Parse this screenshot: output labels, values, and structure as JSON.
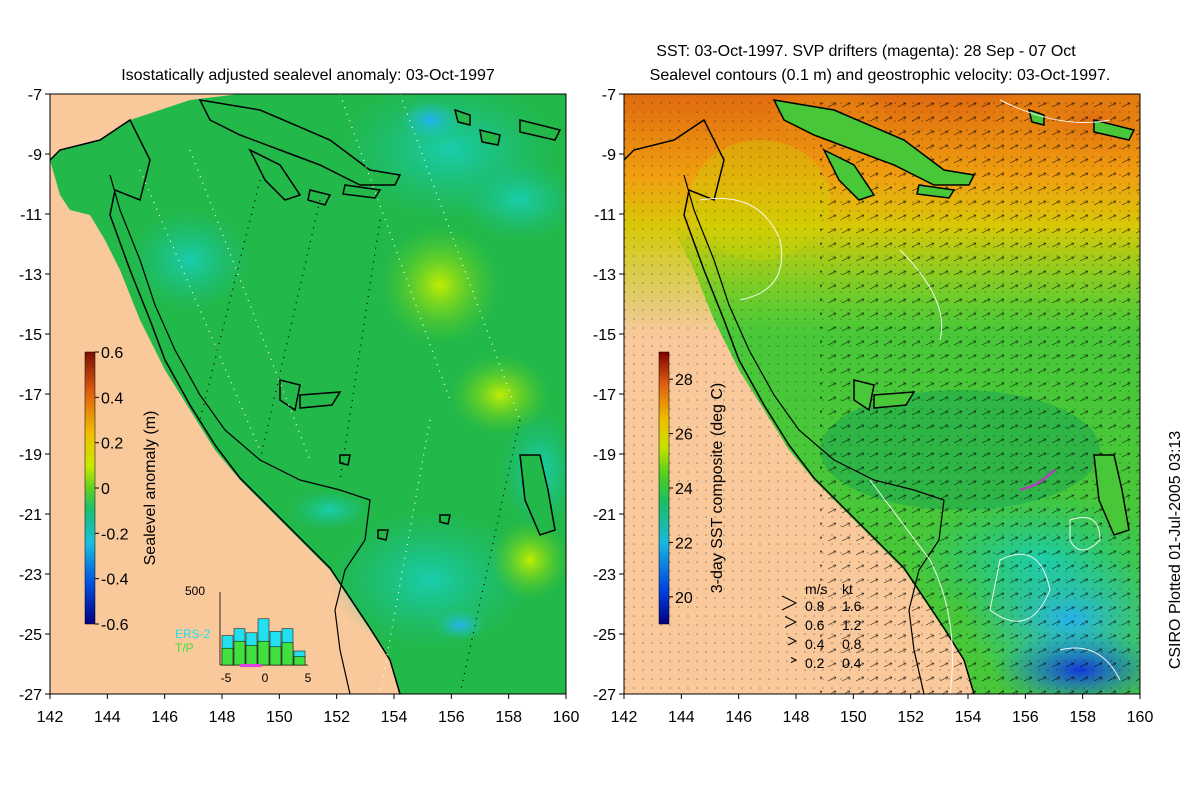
{
  "left_panel": {
    "title": "Isostatically adjusted sealevel anomaly: 03-Oct-1997",
    "colorbar": {
      "label": "Sealevel anomaly (m)",
      "ticks": [
        "0.6",
        "0.4",
        "0.2",
        "0",
        "-0.2",
        "-0.4",
        "-0.6"
      ],
      "min": -0.6,
      "max": 0.6
    },
    "histogram": {
      "ymax_label": "500",
      "xticks": [
        "-5",
        "0",
        "5"
      ],
      "legend": [
        "ERS-2",
        "T/P"
      ],
      "ers2_counts": [
        210,
        260,
        230,
        330,
        240,
        260,
        100
      ],
      "tp_counts": [
        120,
        170,
        140,
        170,
        130,
        160,
        60
      ],
      "colors": {
        "ers2": "#22e0f0",
        "tp": "#40e040",
        "marker": "#e040e0"
      }
    }
  },
  "right_panel": {
    "title_line1": "SST: 03-Oct-1997. SVP drifters (magenta): 28 Sep - 07 Oct",
    "title_line2": "Sealevel contours (0.1 m) and geostrophic velocity: 03-Oct-1997.",
    "colorbar": {
      "label": "3-day SST composite (deg C)",
      "ticks": [
        "28",
        "26",
        "24",
        "22",
        "20"
      ],
      "min": 19,
      "max": 29
    },
    "velocity_legend": {
      "header_ms": "m/s",
      "header_kt": "kt",
      "rows": [
        {
          "ms": "0.8",
          "kt": "1.6"
        },
        {
          "ms": "0.6",
          "kt": "1.2"
        },
        {
          "ms": "0.4",
          "kt": "0.8"
        },
        {
          "ms": "0.2",
          "kt": "0.4"
        }
      ]
    }
  },
  "axes": {
    "lat_ticks": [
      "-7",
      "-9",
      "-11",
      "-13",
      "-15",
      "-17",
      "-19",
      "-21",
      "-23",
      "-25",
      "-27"
    ],
    "lon_ticks": [
      "142",
      "144",
      "146",
      "148",
      "150",
      "152",
      "154",
      "156",
      "158",
      "160"
    ],
    "lat_range": [
      -27,
      -7
    ],
    "lon_range": [
      142,
      160
    ]
  },
  "credit": "CSIRO Plotted 01-Jul-2005 03:13",
  "colors": {
    "land": "#f9c89b",
    "coast": "#000000",
    "sea_green": "#22b84a"
  }
}
